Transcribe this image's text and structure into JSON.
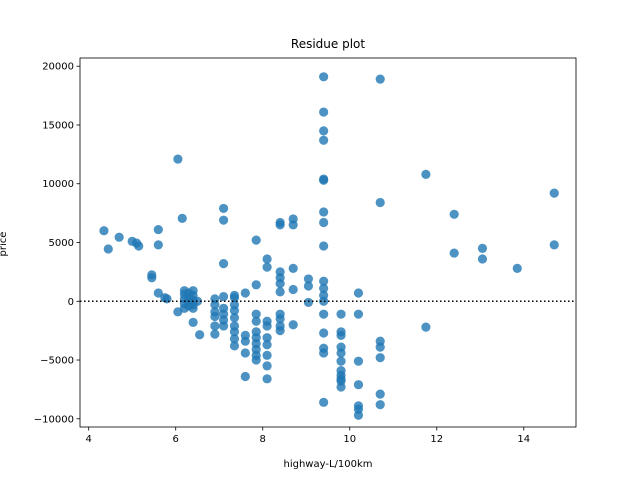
{
  "chart_data": {
    "type": "scatter",
    "title": "Residue plot",
    "xlabel": "highway-L/100km",
    "ylabel": "price",
    "xlim": [
      3.8,
      15.2
    ],
    "ylim": [
      -10700,
      20700
    ],
    "x_ticks": [
      4,
      6,
      8,
      10,
      12,
      14
    ],
    "x_tick_labels": [
      "4",
      "6",
      "8",
      "10",
      "12",
      "14"
    ],
    "y_ticks": [
      -10000,
      -5000,
      0,
      5000,
      10000,
      15000,
      20000
    ],
    "y_tick_labels": [
      "−10000",
      "−5000",
      "0",
      "5000",
      "10000",
      "15000",
      "20000"
    ],
    "reference_line": {
      "y": 0,
      "style": "dotted",
      "color": "#000000"
    },
    "grid": false,
    "legend": "none",
    "marker_color": "#1f77b4",
    "series": [
      {
        "points": [
          [
            4.35,
            6000
          ],
          [
            4.45,
            4450
          ],
          [
            4.7,
            5450
          ],
          [
            5.0,
            5100
          ],
          [
            5.1,
            4950
          ],
          [
            5.15,
            4700
          ],
          [
            5.45,
            2250
          ],
          [
            5.45,
            2000
          ],
          [
            5.6,
            6100
          ],
          [
            5.6,
            4800
          ],
          [
            5.6,
            700
          ],
          [
            5.75,
            300
          ],
          [
            5.8,
            200
          ],
          [
            6.05,
            12100
          ],
          [
            6.05,
            -900
          ],
          [
            6.15,
            7050
          ],
          [
            6.2,
            900
          ],
          [
            6.2,
            600
          ],
          [
            6.2,
            200
          ],
          [
            6.2,
            -200
          ],
          [
            6.2,
            -600
          ],
          [
            6.3,
            700
          ],
          [
            6.3,
            300
          ],
          [
            6.3,
            0
          ],
          [
            6.3,
            -400
          ],
          [
            6.4,
            900
          ],
          [
            6.4,
            500
          ],
          [
            6.4,
            100
          ],
          [
            6.4,
            -300
          ],
          [
            6.4,
            -600
          ],
          [
            6.4,
            -1800
          ],
          [
            6.55,
            -2850
          ],
          [
            6.5,
            0
          ],
          [
            6.9,
            200
          ],
          [
            6.9,
            -300
          ],
          [
            6.9,
            -900
          ],
          [
            6.9,
            -1300
          ],
          [
            6.9,
            -2100
          ],
          [
            6.9,
            -2800
          ],
          [
            7.1,
            7900
          ],
          [
            7.1,
            6900
          ],
          [
            7.1,
            3200
          ],
          [
            7.1,
            400
          ],
          [
            7.1,
            -600
          ],
          [
            7.1,
            -1100
          ],
          [
            7.1,
            -1600
          ],
          [
            7.1,
            -2100
          ],
          [
            7.35,
            500
          ],
          [
            7.35,
            300
          ],
          [
            7.35,
            -300
          ],
          [
            7.35,
            -800
          ],
          [
            7.35,
            -1400
          ],
          [
            7.35,
            -2100
          ],
          [
            7.35,
            -2600
          ],
          [
            7.35,
            -3200
          ],
          [
            7.35,
            -3800
          ],
          [
            7.6,
            700
          ],
          [
            7.6,
            -2900
          ],
          [
            7.6,
            -3400
          ],
          [
            7.6,
            -4400
          ],
          [
            7.6,
            -6400
          ],
          [
            7.85,
            5200
          ],
          [
            7.85,
            1400
          ],
          [
            7.85,
            -1100
          ],
          [
            7.85,
            -1700
          ],
          [
            7.85,
            -2600
          ],
          [
            7.85,
            -3100
          ],
          [
            7.85,
            -3600
          ],
          [
            7.85,
            -4100
          ],
          [
            7.85,
            -4600
          ],
          [
            7.85,
            -5000
          ],
          [
            8.1,
            3600
          ],
          [
            8.1,
            2900
          ],
          [
            8.1,
            -1700
          ],
          [
            8.1,
            -2100
          ],
          [
            8.1,
            -3100
          ],
          [
            8.1,
            -3700
          ],
          [
            8.1,
            -4600
          ],
          [
            8.1,
            -5500
          ],
          [
            8.1,
            -6600
          ],
          [
            8.4,
            6700
          ],
          [
            8.4,
            6500
          ],
          [
            8.4,
            2500
          ],
          [
            8.4,
            2000
          ],
          [
            8.4,
            1500
          ],
          [
            8.4,
            800
          ],
          [
            8.4,
            -1100
          ],
          [
            8.4,
            -1500
          ],
          [
            8.4,
            -2100
          ],
          [
            8.4,
            -2500
          ],
          [
            8.7,
            7000
          ],
          [
            8.7,
            6500
          ],
          [
            8.7,
            2800
          ],
          [
            8.7,
            1000
          ],
          [
            8.7,
            -2000
          ],
          [
            9.05,
            1900
          ],
          [
            9.05,
            1300
          ],
          [
            9.05,
            -100
          ],
          [
            9.4,
            19100
          ],
          [
            9.4,
            16100
          ],
          [
            9.4,
            14500
          ],
          [
            9.4,
            13700
          ],
          [
            9.4,
            10400
          ],
          [
            9.4,
            10300
          ],
          [
            9.4,
            7600
          ],
          [
            9.4,
            6700
          ],
          [
            9.4,
            4700
          ],
          [
            9.4,
            1700
          ],
          [
            9.4,
            1100
          ],
          [
            9.4,
            500
          ],
          [
            9.4,
            0
          ],
          [
            9.4,
            -1100
          ],
          [
            9.4,
            -2700
          ],
          [
            9.4,
            -4000
          ],
          [
            9.4,
            -4400
          ],
          [
            9.4,
            -8600
          ],
          [
            9.8,
            -1100
          ],
          [
            9.8,
            -2600
          ],
          [
            9.8,
            -2900
          ],
          [
            9.8,
            -3900
          ],
          [
            9.8,
            -4400
          ],
          [
            9.8,
            -5100
          ],
          [
            9.8,
            -5900
          ],
          [
            9.8,
            -6300
          ],
          [
            9.8,
            -6600
          ],
          [
            9.8,
            -6800
          ],
          [
            9.8,
            -7300
          ],
          [
            10.2,
            700
          ],
          [
            10.2,
            -1100
          ],
          [
            10.2,
            -5100
          ],
          [
            10.2,
            -7100
          ],
          [
            10.2,
            -8900
          ],
          [
            10.2,
            -9200
          ],
          [
            10.2,
            -9700
          ],
          [
            10.7,
            18900
          ],
          [
            10.7,
            8400
          ],
          [
            10.7,
            -3400
          ],
          [
            10.7,
            -3900
          ],
          [
            10.7,
            -4800
          ],
          [
            10.7,
            -7900
          ],
          [
            10.7,
            -8800
          ],
          [
            11.75,
            10800
          ],
          [
            11.75,
            -2200
          ],
          [
            12.4,
            7400
          ],
          [
            12.4,
            4100
          ],
          [
            13.05,
            4500
          ],
          [
            13.05,
            3600
          ],
          [
            13.85,
            2800
          ],
          [
            14.7,
            9200
          ],
          [
            14.7,
            4800
          ]
        ]
      }
    ]
  }
}
